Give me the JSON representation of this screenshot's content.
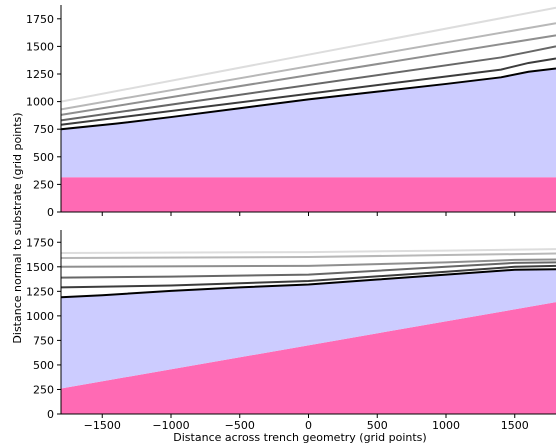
{
  "chart_data": {
    "type": "area",
    "xlabel": "Distance across trench geometry (grid points)",
    "ylabel": "Distance normal to substrate (grid points)",
    "xlim": [
      -1800,
      1800
    ],
    "x_ticks": [
      -1500,
      -1000,
      -500,
      0,
      500,
      1000,
      1500
    ],
    "x_tick_labels": [
      "−1500",
      "−1000",
      "−500",
      "0",
      "500",
      "1000",
      "1500"
    ],
    "grid": false,
    "panels": [
      {
        "ylim": [
          0,
          1875
        ],
        "y_ticks": [
          0,
          250,
          500,
          750,
          1000,
          1250,
          1500,
          1750
        ],
        "regions": [
          {
            "color": "#ff6ab4",
            "lower": [
              [
                -1800,
                0
              ],
              [
                1800,
                0
              ]
            ],
            "upper": [
              [
                -1800,
                315
              ],
              [
                1800,
                315
              ]
            ]
          },
          {
            "color": "#ccccff",
            "lower": [
              [
                -1800,
                315
              ],
              [
                1800,
                315
              ]
            ],
            "upper": [
              [
                -1800,
                750
              ],
              [
                -1400,
                800
              ],
              [
                -1000,
                860
              ],
              [
                -500,
                940
              ],
              [
                0,
                1020
              ],
              [
                500,
                1090
              ],
              [
                1000,
                1160
              ],
              [
                1400,
                1220
              ],
              [
                1600,
                1270
              ],
              [
                1800,
                1300
              ]
            ]
          }
        ],
        "series": [
          {
            "color": "#dddddd",
            "points": [
              [
                -1800,
                1000
              ],
              [
                1800,
                1850
              ]
            ]
          },
          {
            "color": "#b8b8b8",
            "points": [
              [
                -1800,
                930
              ],
              [
                1800,
                1710
              ]
            ]
          },
          {
            "color": "#8f8f8f",
            "points": [
              [
                -1800,
                880
              ],
              [
                1800,
                1600
              ]
            ]
          },
          {
            "color": "#676767",
            "points": [
              [
                -1800,
                830
              ],
              [
                1400,
                1400
              ],
              [
                1600,
                1450
              ],
              [
                1800,
                1500
              ]
            ]
          },
          {
            "color": "#3c3c3c",
            "points": [
              [
                -1800,
                790
              ],
              [
                1400,
                1290
              ],
              [
                1600,
                1350
              ],
              [
                1800,
                1390
              ]
            ]
          },
          {
            "color": "#000000",
            "points": [
              [
                -1800,
                750
              ],
              [
                -1400,
                800
              ],
              [
                -1000,
                860
              ],
              [
                -500,
                940
              ],
              [
                0,
                1020
              ],
              [
                500,
                1090
              ],
              [
                1000,
                1160
              ],
              [
                1400,
                1220
              ],
              [
                1600,
                1270
              ],
              [
                1800,
                1300
              ]
            ]
          }
        ]
      },
      {
        "ylim": [
          0,
          1875
        ],
        "y_ticks": [
          0,
          250,
          500,
          750,
          1000,
          1250,
          1500,
          1750
        ],
        "regions": [
          {
            "color": "#ff6ab4",
            "lower": [
              [
                -1800,
                0
              ],
              [
                1800,
                0
              ]
            ],
            "upper": [
              [
                -1800,
                260
              ],
              [
                1800,
                1140
              ]
            ]
          },
          {
            "color": "#ccccff",
            "lower": [
              [
                -1800,
                260
              ],
              [
                1800,
                1140
              ]
            ],
            "upper": [
              [
                -1800,
                1190
              ],
              [
                -1500,
                1210
              ],
              [
                -1000,
                1255
              ],
              [
                -500,
                1290
              ],
              [
                0,
                1320
              ],
              [
                500,
                1370
              ],
              [
                1000,
                1420
              ],
              [
                1500,
                1470
              ],
              [
                1800,
                1475
              ]
            ]
          }
        ],
        "series": [
          {
            "color": "#dddddd",
            "points": [
              [
                -1800,
                1640
              ],
              [
                0,
                1650
              ],
              [
                1000,
                1665
              ],
              [
                1800,
                1680
              ]
            ]
          },
          {
            "color": "#b8b8b8",
            "points": [
              [
                -1800,
                1590
              ],
              [
                0,
                1600
              ],
              [
                1000,
                1620
              ],
              [
                1800,
                1635
              ]
            ]
          },
          {
            "color": "#8f8f8f",
            "points": [
              [
                -1800,
                1500
              ],
              [
                0,
                1510
              ],
              [
                1000,
                1545
              ],
              [
                1500,
                1570
              ],
              [
                1800,
                1575
              ]
            ]
          },
          {
            "color": "#676767",
            "points": [
              [
                -1800,
                1390
              ],
              [
                -1000,
                1400
              ],
              [
                0,
                1420
              ],
              [
                1000,
                1500
              ],
              [
                1500,
                1540
              ],
              [
                1800,
                1545
              ]
            ]
          },
          {
            "color": "#3c3c3c",
            "points": [
              [
                -1800,
                1290
              ],
              [
                -1000,
                1310
              ],
              [
                0,
                1355
              ],
              [
                1000,
                1450
              ],
              [
                1500,
                1500
              ],
              [
                1800,
                1510
              ]
            ]
          },
          {
            "color": "#000000",
            "points": [
              [
                -1800,
                1190
              ],
              [
                -1500,
                1210
              ],
              [
                -1000,
                1255
              ],
              [
                -500,
                1290
              ],
              [
                0,
                1320
              ],
              [
                500,
                1370
              ],
              [
                1000,
                1420
              ],
              [
                1500,
                1470
              ],
              [
                1800,
                1475
              ]
            ]
          }
        ]
      }
    ]
  }
}
